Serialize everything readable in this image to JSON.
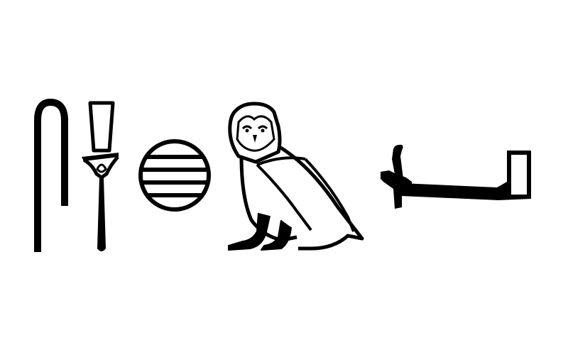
{
  "glyphs": [
    {
      "icon": "crook-staff-icon"
    },
    {
      "icon": "papyrus-sceptre-icon"
    },
    {
      "icon": "placenta-disc-icon"
    },
    {
      "icon": "owl-icon"
    },
    {
      "icon": "bier-bed-icon"
    }
  ],
  "colors": {
    "ink": "#000000",
    "background": "#ffffff"
  }
}
